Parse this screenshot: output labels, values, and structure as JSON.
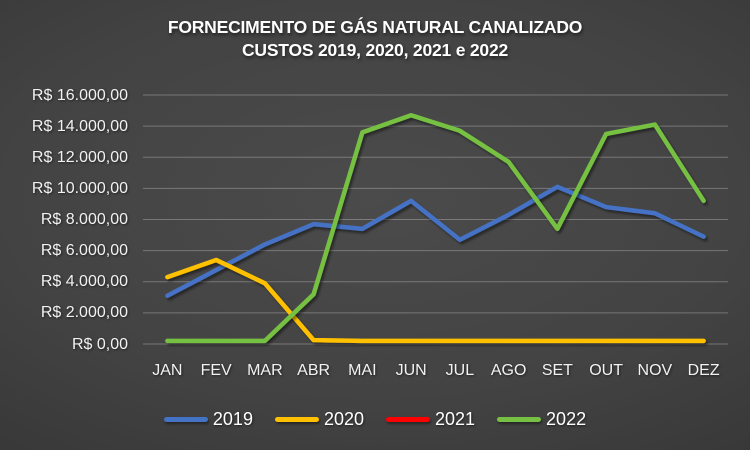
{
  "title_line1": "FORNECIMENTO DE GÁS NATURAL CANALIZADO",
  "title_line2": "CUSTOS 2019, 2020, 2021 e 2022",
  "chart_data": {
    "type": "line",
    "title": "FORNECIMENTO DE GÁS NATURAL CANALIZADO CUSTOS 2019, 2020, 2021 e 2022",
    "categories": [
      "JAN",
      "FEV",
      "MAR",
      "ABR",
      "MAI",
      "JUN",
      "JUL",
      "AGO",
      "SET",
      "OUT",
      "NOV",
      "DEZ"
    ],
    "series": [
      {
        "name": "2019",
        "color": "#4472C4",
        "values": [
          3100,
          4750,
          6400,
          7700,
          7400,
          9200,
          6700,
          8300,
          10100,
          8800,
          8400,
          6900
        ]
      },
      {
        "name": "2020",
        "color": "#FFC000",
        "values": [
          4300,
          5400,
          3900,
          250,
          200,
          200,
          200,
          200,
          200,
          200,
          200,
          200
        ]
      },
      {
        "name": "2021",
        "color": "#FF0000",
        "values": [
          350,
          350,
          350,
          350,
          350,
          350,
          350,
          350,
          350,
          350,
          350,
          350
        ]
      },
      {
        "name": "2022",
        "color": "#76C043",
        "values": [
          200,
          200,
          200,
          3200,
          13600,
          14700,
          13700,
          11700,
          7400,
          13500,
          14100,
          9200
        ]
      }
    ],
    "y_tick_labels": [
      "R$ 16.000,00",
      "R$ 14.000,00",
      "R$ 12.000,00",
      "R$ 10.000,00",
      "R$ 8.000,00",
      "R$ 6.000,00",
      "R$ 4.000,00",
      "R$ 2.000,00",
      "R$ 0,00"
    ],
    "y_tick_values": [
      16000,
      14000,
      12000,
      10000,
      8000,
      6000,
      4000,
      2000,
      0
    ],
    "ylim": [
      0,
      16000
    ],
    "xlabel": "",
    "ylabel": "",
    "grid": "horizontal",
    "legend_position": "bottom",
    "background_color": "#3c3c3c",
    "gridline_color": "#e2e2e2",
    "text_color": "#f2f2f2"
  }
}
